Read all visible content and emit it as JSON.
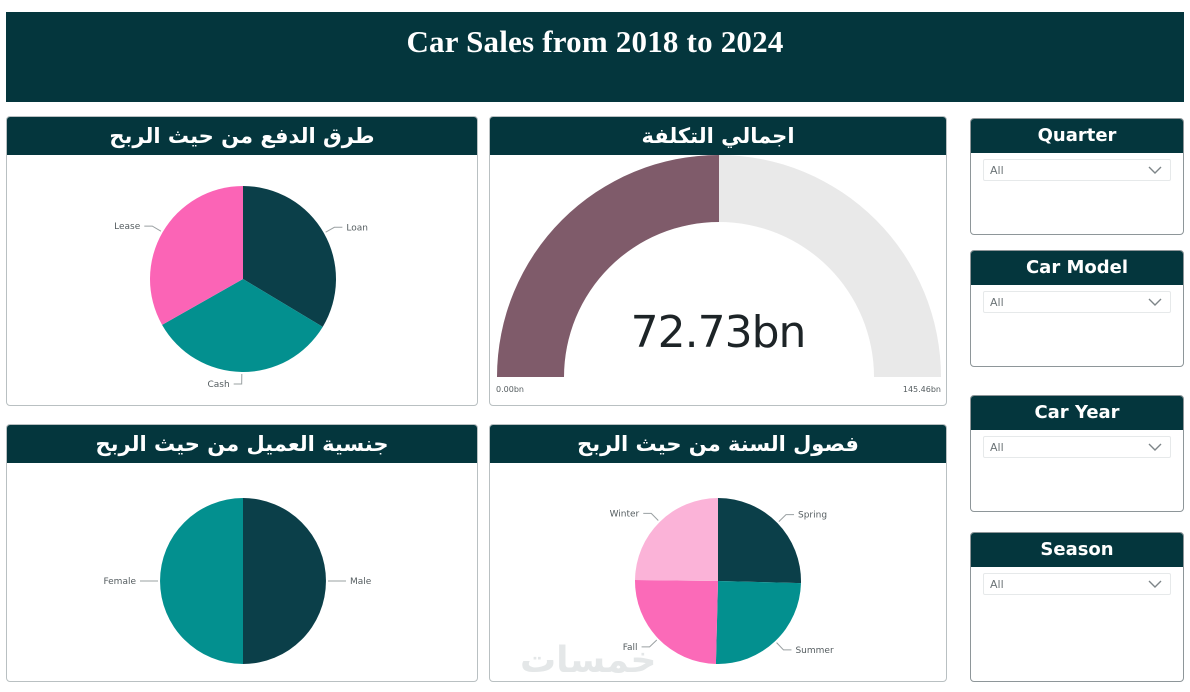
{
  "header": {
    "title": "Car Sales from 2018 to 2024"
  },
  "payment_chart": {
    "title": "طرق الدفع من حيث الربح",
    "chart_data": {
      "type": "pie",
      "title": "طرق الدفع من حيث الربح",
      "slices": [
        {
          "label": "Loan",
          "value": 33.6,
          "color": "#0b3f49"
        },
        {
          "label": "Cash",
          "value": 33.2,
          "color": "#03908f"
        },
        {
          "label": "Lease",
          "value": 33.2,
          "color": "#fb64b6"
        }
      ]
    }
  },
  "cost_gauge": {
    "title": "اجمالي التكلفة",
    "value_label": "72.73bn",
    "min_label": "0.00bn",
    "max_label": "145.46bn",
    "value": 72.73,
    "min": 0,
    "max": 145.46,
    "fill_color": "#7f5b6a",
    "track_color": "#e9e9e9"
  },
  "nationality_chart": {
    "title": "جنسية العميل من حيث الربح",
    "chart_data": {
      "type": "pie",
      "title": "جنسية العميل من حيث الربح",
      "slices": [
        {
          "label": "Male",
          "value": 50,
          "color": "#0b3f49"
        },
        {
          "label": "Female",
          "value": 50,
          "color": "#03908f"
        }
      ]
    }
  },
  "season_chart": {
    "title": "فصول السنة من حيث الربح",
    "chart_data": {
      "type": "pie",
      "title": "فصول السنة من حيث الربح",
      "slices": [
        {
          "label": "Spring",
          "value": 25.4,
          "color": "#0b3f49"
        },
        {
          "label": "Summer",
          "value": 25.0,
          "color": "#03908f"
        },
        {
          "label": "Fall",
          "value": 24.8,
          "color": "#fb6ab8"
        },
        {
          "label": "Winter",
          "value": 24.8,
          "color": "#fbb3d8"
        }
      ]
    }
  },
  "slicers": [
    {
      "title": "Quarter",
      "value": "All"
    },
    {
      "title": "Car Model",
      "value": "All"
    },
    {
      "title": "Car Year",
      "value": "All"
    },
    {
      "title": "Season",
      "value": "All"
    }
  ],
  "watermark": {
    "text": "خمسات"
  },
  "colors": {
    "header_bg": "#04363d",
    "border": "#b9c0c2"
  }
}
